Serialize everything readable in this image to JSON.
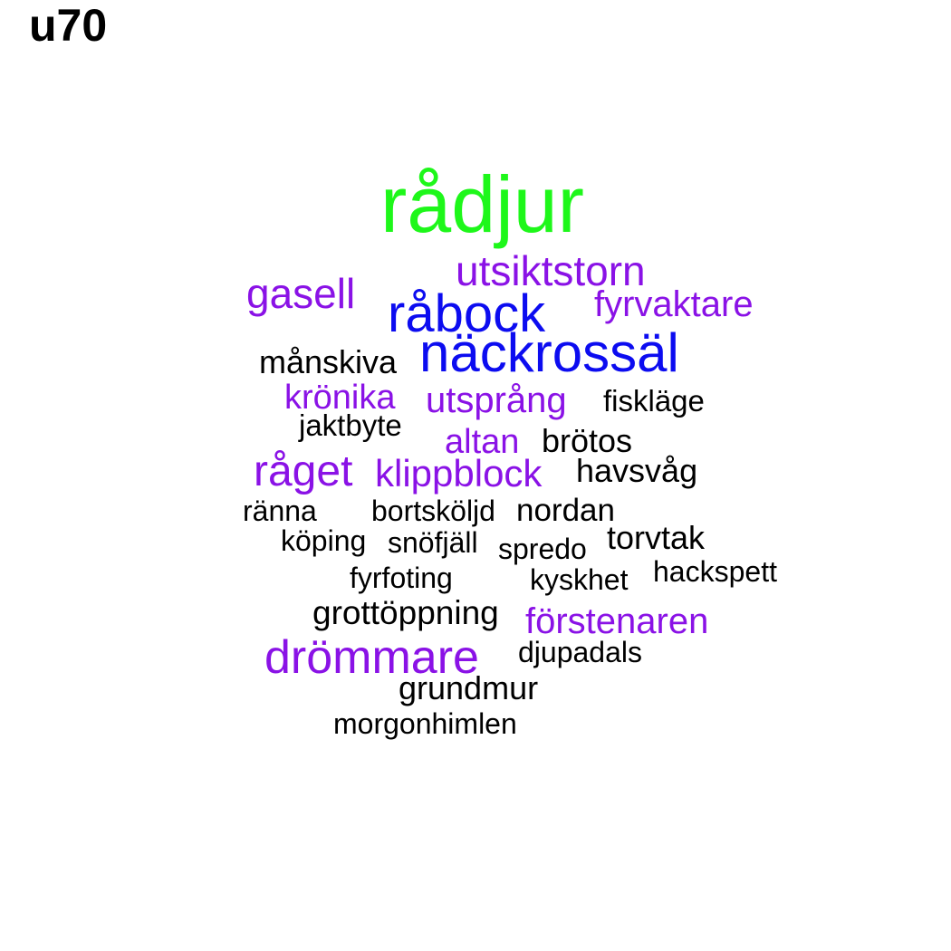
{
  "title": "u70",
  "colors": {
    "green": "#1ef71a",
    "blue": "#0c0cf0",
    "purple": "#8a12e6",
    "black": "#000000",
    "background": "#ffffff"
  },
  "words": [
    {
      "text": "rådjur",
      "color": "green"
    },
    {
      "text": "utsiktstorn",
      "color": "purple"
    },
    {
      "text": "gasell",
      "color": "purple"
    },
    {
      "text": "råbock",
      "color": "blue"
    },
    {
      "text": "fyrvaktare",
      "color": "purple"
    },
    {
      "text": "månskiva",
      "color": "black"
    },
    {
      "text": "näckrossäl",
      "color": "blue"
    },
    {
      "text": "krönika",
      "color": "purple"
    },
    {
      "text": "utsprång",
      "color": "purple"
    },
    {
      "text": "fiskläge",
      "color": "black"
    },
    {
      "text": "jaktbyte",
      "color": "black"
    },
    {
      "text": "altan",
      "color": "purple"
    },
    {
      "text": "brötos",
      "color": "black"
    },
    {
      "text": "råget",
      "color": "purple"
    },
    {
      "text": "klippblock",
      "color": "purple"
    },
    {
      "text": "havsvåg",
      "color": "black"
    },
    {
      "text": "ränna",
      "color": "black"
    },
    {
      "text": "bortsköljd",
      "color": "black"
    },
    {
      "text": "nordan",
      "color": "black"
    },
    {
      "text": "köping",
      "color": "black"
    },
    {
      "text": "snöfjäll",
      "color": "black"
    },
    {
      "text": "spredo",
      "color": "black"
    },
    {
      "text": "torvtak",
      "color": "black"
    },
    {
      "text": "fyrfoting",
      "color": "black"
    },
    {
      "text": "kyskhet",
      "color": "black"
    },
    {
      "text": "hackspett",
      "color": "black"
    },
    {
      "text": "grottöppning",
      "color": "black"
    },
    {
      "text": "förstenaren",
      "color": "purple"
    },
    {
      "text": "drömmare",
      "color": "purple"
    },
    {
      "text": "djupadals",
      "color": "black"
    },
    {
      "text": "grundmur",
      "color": "black"
    },
    {
      "text": "morgonhimlen",
      "color": "black"
    }
  ]
}
